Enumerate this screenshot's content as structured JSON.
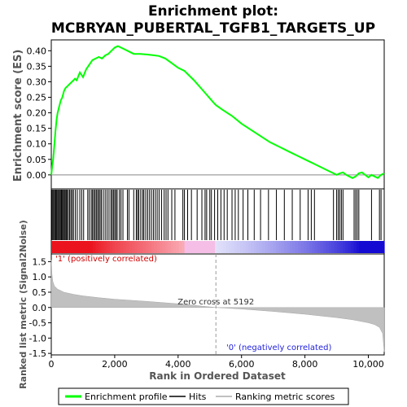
{
  "chart_data": {
    "type": "line",
    "title": "Enrichment plot: MCBRYAN_PUBERTAL_TGFB1_TARGETS_UP",
    "title_line1": "Enrichment plot:",
    "title_line2": "MCBRYAN_PUBERTAL_TGFB1_TARGETS_UP",
    "es_panel": {
      "ylabel": "Enrichment score (ES)",
      "ylim": [
        -0.045,
        0.435
      ],
      "yticks": [
        0.0,
        0.05,
        0.1,
        0.15,
        0.2,
        0.25,
        0.3,
        0.35,
        0.4
      ],
      "ytick_labels": [
        "0.00",
        "0.05",
        "0.10",
        "0.15",
        "0.20",
        "0.25",
        "0.30",
        "0.35",
        "0.40"
      ],
      "line_color": "#00ff00",
      "series": [
        {
          "name": "Enrichment profile",
          "x": [
            0,
            30,
            60,
            100,
            130,
            170,
            200,
            250,
            300,
            350,
            400,
            450,
            500,
            550,
            600,
            650,
            700,
            750,
            800,
            900,
            1000,
            1100,
            1200,
            1300,
            1400,
            1500,
            1600,
            1700,
            1800,
            1900,
            2000,
            2100,
            2200,
            2300,
            2400,
            2600,
            2800,
            3000,
            3200,
            3400,
            3600,
            3800,
            4000,
            4200,
            4500,
            4800,
            5100,
            5192,
            5400,
            5700,
            6000,
            6300,
            6600,
            6900,
            7200,
            7500,
            7800,
            8100,
            8400,
            8700,
            8900,
            9000,
            9100,
            9200,
            9300,
            9400,
            9500,
            9600,
            9700,
            9800,
            9900,
            10000,
            10100,
            10200,
            10300,
            10400,
            10500
          ],
          "y": [
            0.0,
            0.03,
            0.05,
            0.1,
            0.14,
            0.18,
            0.2,
            0.22,
            0.24,
            0.25,
            0.27,
            0.28,
            0.285,
            0.29,
            0.295,
            0.3,
            0.305,
            0.31,
            0.305,
            0.33,
            0.315,
            0.34,
            0.355,
            0.37,
            0.375,
            0.38,
            0.375,
            0.385,
            0.39,
            0.4,
            0.41,
            0.415,
            0.41,
            0.405,
            0.4,
            0.39,
            0.39,
            0.388,
            0.386,
            0.383,
            0.375,
            0.36,
            0.345,
            0.335,
            0.305,
            0.27,
            0.235,
            0.225,
            0.21,
            0.19,
            0.165,
            0.145,
            0.125,
            0.105,
            0.09,
            0.075,
            0.06,
            0.045,
            0.03,
            0.015,
            0.005,
            0.0,
            0.005,
            0.008,
            0.0,
            -0.005,
            -0.01,
            -0.005,
            0.005,
            0.008,
            0.0,
            -0.008,
            0.0,
            -0.005,
            -0.01,
            0.0,
            0.005
          ]
        }
      ]
    },
    "metric_panel": {
      "ylabel": "Ranked list metric (Signal2Noise)",
      "xlabel": "Rank in Ordered Dataset",
      "ylim": [
        -1.55,
        1.75
      ],
      "yticks": [
        -1.5,
        -1.0,
        -0.5,
        0.0,
        0.5,
        1.0,
        1.5
      ],
      "ytick_labels": [
        "-1.5",
        "-1.0",
        "-0.5",
        "0.0",
        "0.5",
        "1.0",
        "1.5"
      ],
      "x": [
        0,
        20,
        50,
        100,
        200,
        400,
        700,
        1000,
        1500,
        2000,
        3000,
        4000,
        5000,
        5192,
        6000,
        7000,
        8000,
        9000,
        9500,
        10000,
        10200,
        10350,
        10450,
        10500
      ],
      "values": [
        1.55,
        1.1,
        0.85,
        0.7,
        0.6,
        0.5,
        0.43,
        0.38,
        0.32,
        0.27,
        0.2,
        0.12,
        0.02,
        0.0,
        -0.05,
        -0.13,
        -0.22,
        -0.33,
        -0.4,
        -0.5,
        -0.56,
        -0.65,
        -0.85,
        -1.45
      ],
      "zero_cross_label": "Zero cross at 5192",
      "zero_cross": 5192,
      "pos_label": "'1' (positively correlated)",
      "neg_label": "'0' (negatively correlated)"
    },
    "x_axis": {
      "xlim": [
        0,
        10500
      ],
      "xticks": [
        0,
        2000,
        4000,
        6000,
        8000,
        10000
      ],
      "xtick_labels": [
        "0",
        "2,000",
        "4,000",
        "6,000",
        "8,000",
        "10,000"
      ]
    },
    "hits": [
      20,
      50,
      80,
      110,
      140,
      170,
      200,
      230,
      260,
      290,
      320,
      350,
      380,
      410,
      440,
      470,
      500,
      540,
      580,
      620,
      660,
      700,
      760,
      820,
      900,
      960,
      1020,
      1150,
      1200,
      1260,
      1300,
      1340,
      1380,
      1420,
      1460,
      1500,
      1540,
      1580,
      1640,
      1700,
      1760,
      1820,
      1880,
      1920,
      1960,
      2000,
      2040,
      2080,
      2150,
      2200,
      2260,
      2400,
      2450,
      2600,
      2680,
      2720,
      2760,
      2820,
      2880,
      2920,
      2980,
      3040,
      3100,
      3160,
      3220,
      3280,
      3340,
      3400,
      3480,
      3560,
      3620,
      3680,
      3800,
      3900,
      4150,
      4200,
      4300,
      4420,
      4600,
      4750,
      4850,
      4900,
      5000,
      5050,
      5150,
      5250,
      5350,
      5450,
      5550,
      5700,
      5800,
      5900,
      6050,
      6200,
      6400,
      6600,
      6850,
      7100,
      7350,
      7600,
      7850,
      8100,
      8200,
      8300,
      8900,
      9000,
      9050,
      9100,
      9150,
      9200,
      9550,
      9600,
      9650,
      9700,
      10100,
      10350,
      10400
    ],
    "legend": [
      {
        "label": "Enrichment profile",
        "color": "#00ff00"
      },
      {
        "label": "Hits",
        "color": "#000000"
      },
      {
        "label": "Ranking metric scores",
        "color": "#c0c0c0"
      }
    ]
  }
}
